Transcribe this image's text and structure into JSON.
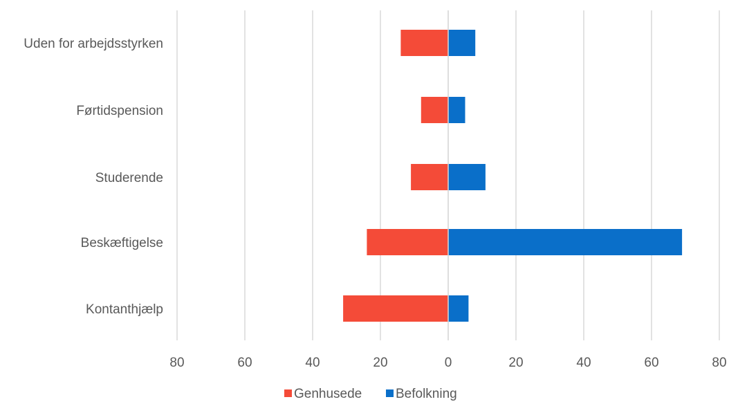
{
  "chart_data": {
    "type": "bar",
    "orientation": "horizontal",
    "layout": "diverging",
    "categories": [
      "Uden for arbejdsstyrken",
      "Førtidspension",
      "Studerende",
      "Beskæftigelse",
      "Kontanthjælp"
    ],
    "series": [
      {
        "name": "Genhusede",
        "values": [
          14,
          8,
          11,
          24,
          31
        ],
        "color": "#f44b38",
        "direction": "left"
      },
      {
        "name": "Befolkning",
        "values": [
          8,
          5,
          11,
          69,
          6
        ],
        "color": "#0a6fc9",
        "direction": "right"
      }
    ],
    "x_ticks": [
      "80",
      "60",
      "40",
      "20",
      "0",
      "20",
      "40",
      "60",
      "80"
    ],
    "xlim": [
      -80,
      80
    ],
    "grid": "vertical",
    "legend_position": "bottom",
    "title": "",
    "xlabel": "",
    "ylabel": ""
  },
  "colors": {
    "grid": "#d9d9d9",
    "text": "#595959"
  }
}
